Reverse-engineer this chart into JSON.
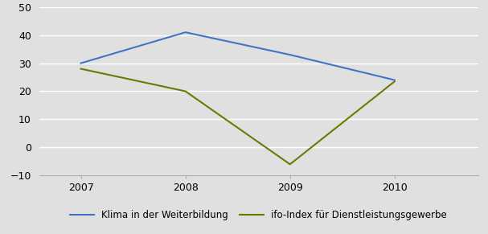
{
  "years": [
    2007,
    2008,
    2009,
    2010
  ],
  "series": [
    {
      "label": "Klima in der Weiterbildung",
      "values": [
        30,
        41,
        33,
        24
      ],
      "color": "#4472C4",
      "linewidth": 1.5
    },
    {
      "label": "ifo-Index für Dienstleistungsgewerbe",
      "values": [
        28,
        20,
        -6,
        23.5
      ],
      "color": "#6B7A00",
      "linewidth": 1.5
    }
  ],
  "ylim": [
    -10,
    50
  ],
  "yticks": [
    -10,
    0,
    10,
    20,
    30,
    40,
    50
  ],
  "background_color": "#E0E0E0",
  "plot_bg_color": "#E0E0E0",
  "grid_color": "#FFFFFF",
  "legend_ncol": 2,
  "figsize": [
    6.07,
    2.91
  ],
  "dpi": 100
}
